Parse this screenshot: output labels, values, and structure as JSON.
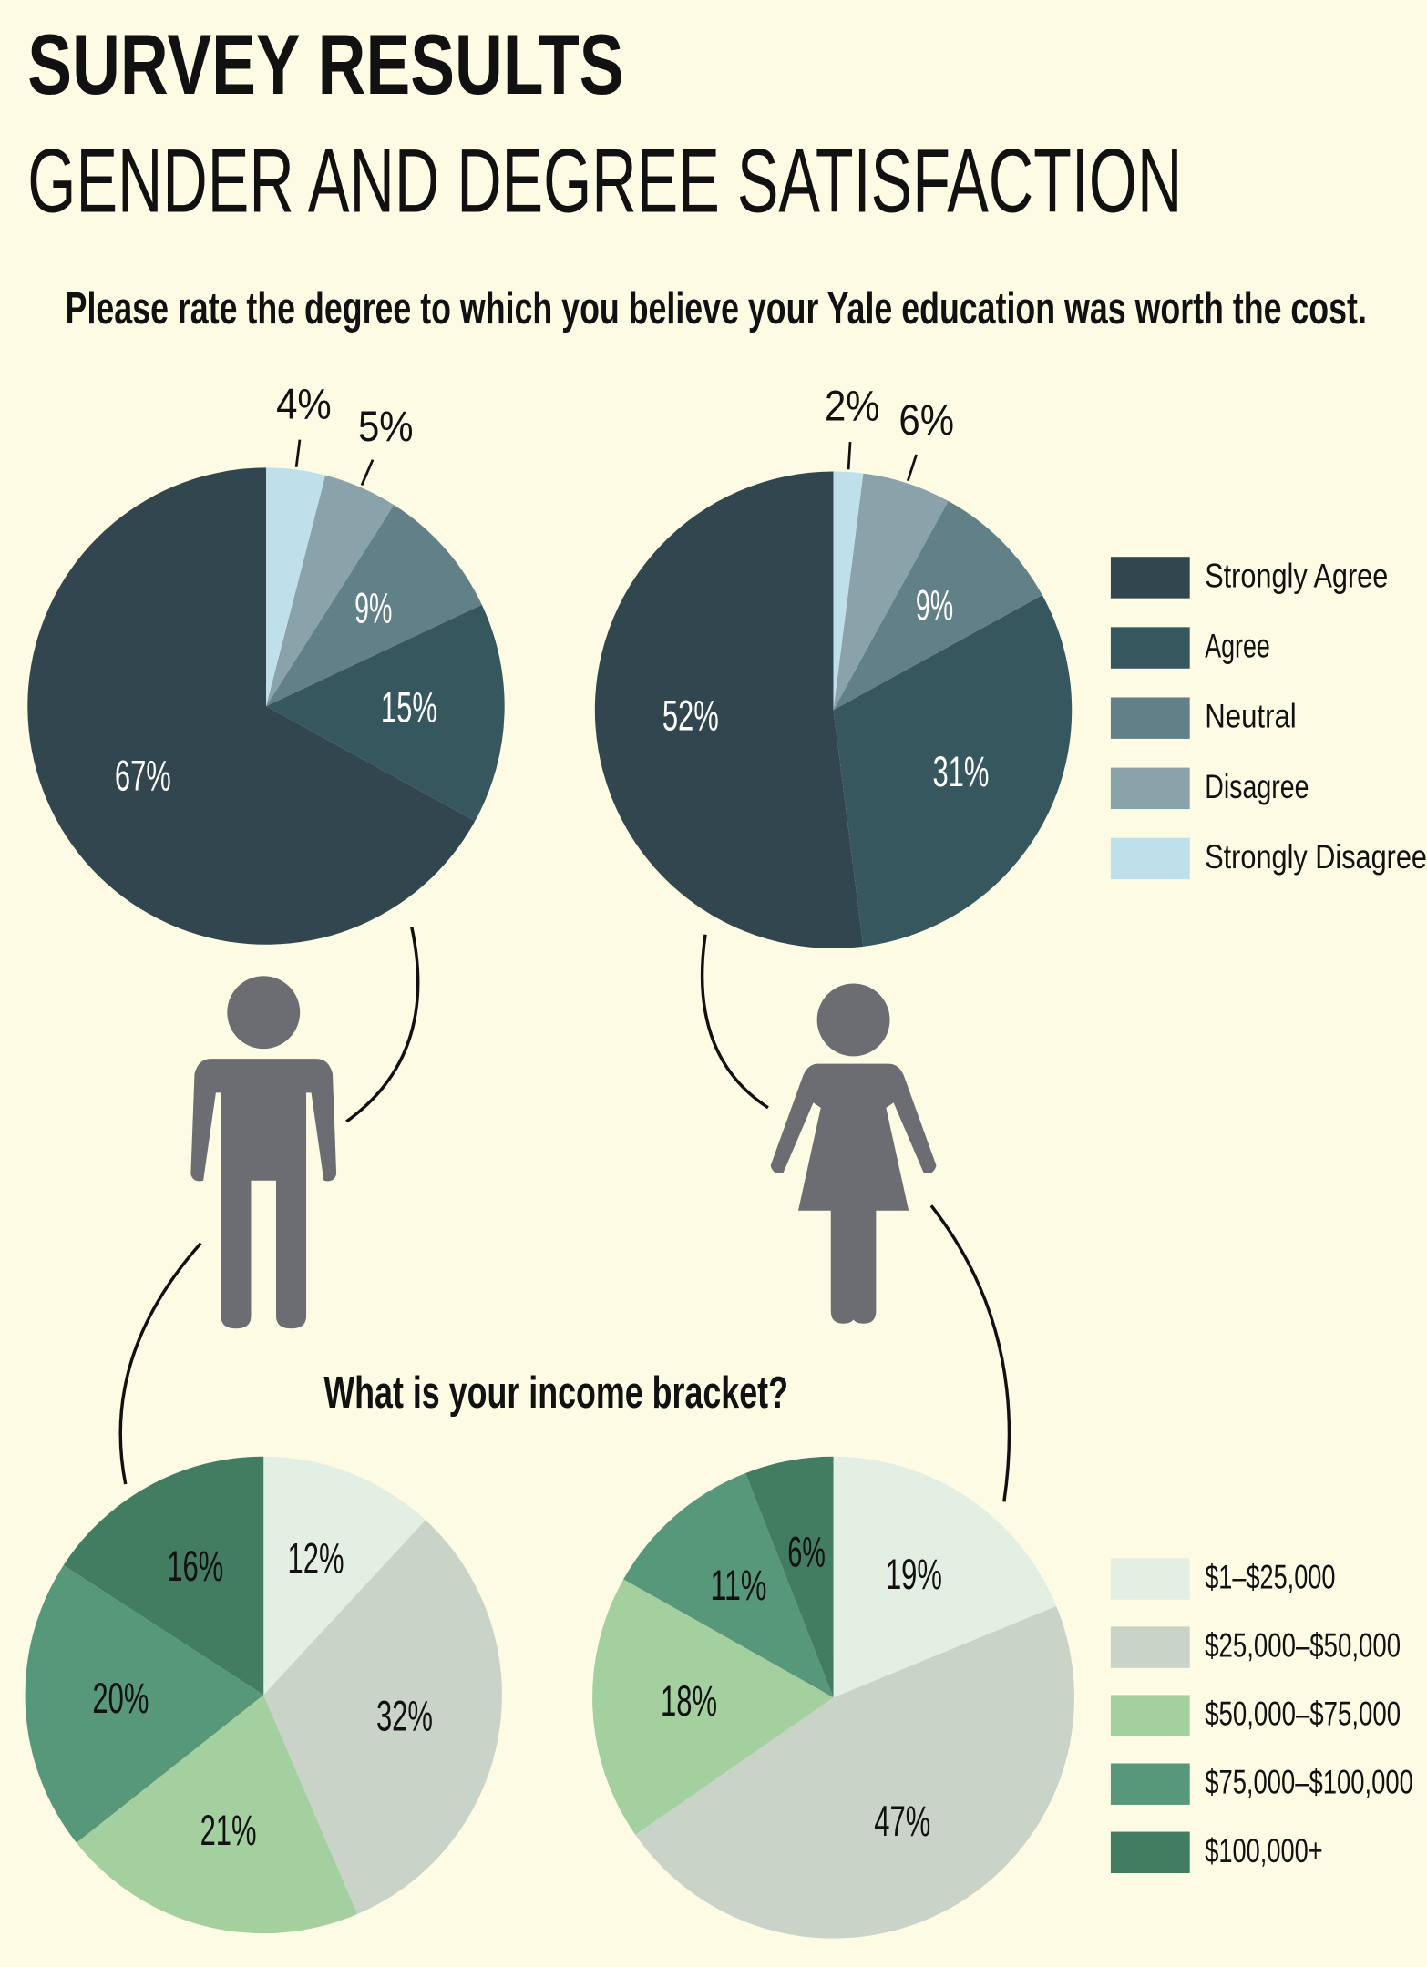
{
  "title": "SURVEY RESULTS",
  "subtitle": "GENDER AND DEGREE SATISFACTION",
  "chart_data": [
    {
      "type": "pie",
      "title": "Please rate the degree to which you believe your Yale education was worth the cost.",
      "direction": "counterclockwise",
      "categories": [
        "Strongly Agree",
        "Agree",
        "Neutral",
        "Disagree",
        "Strongly Disagree"
      ],
      "values": [
        67,
        15,
        9,
        5,
        4
      ],
      "value_labels": [
        "67%",
        "15%",
        "9%",
        "5%",
        "4%"
      ],
      "colors": [
        "#32464f",
        "#37575e",
        "#628088",
        "#8aa3aa",
        "#bfe0ea"
      ]
    },
    {
      "type": "pie",
      "direction": "counterclockwise",
      "categories": [
        "Strongly Agree",
        "Agree",
        "Neutral",
        "Disagree",
        "Strongly Disagree"
      ],
      "values": [
        52,
        31,
        9,
        6,
        2
      ],
      "value_labels": [
        "52%",
        "31%",
        "9%",
        "6%",
        "2%"
      ],
      "colors": [
        "#32464f",
        "#37575e",
        "#628088",
        "#8aa3aa",
        "#bfe0ea"
      ]
    },
    {
      "type": "pie",
      "title": "What is your income bracket?",
      "direction": "clockwise",
      "categories": [
        "$1–$25,000",
        "$25,000–$50,000",
        "$50,000–$75,000",
        "$75,000–$100,000",
        "$100,000+"
      ],
      "values": [
        12,
        32,
        21,
        20,
        16
      ],
      "value_labels": [
        "12%",
        "32%",
        "21%",
        "20%",
        "16%"
      ],
      "colors": [
        "#e4efe3",
        "#c9d3c8",
        "#a4cf9f",
        "#58987a",
        "#427d62"
      ]
    },
    {
      "type": "pie",
      "direction": "clockwise",
      "categories": [
        "$1–$25,000",
        "$25,000–$50,000",
        "$50,000–$75,000",
        "$75,000–$100,000",
        "$100,000+"
      ],
      "values": [
        19,
        47,
        18,
        11,
        6
      ],
      "value_labels": [
        "19%",
        "47%",
        "18%",
        "11%",
        "6%"
      ],
      "colors": [
        "#e4efe3",
        "#c9d3c8",
        "#a4cf9f",
        "#58987a",
        "#427d62"
      ]
    }
  ]
}
